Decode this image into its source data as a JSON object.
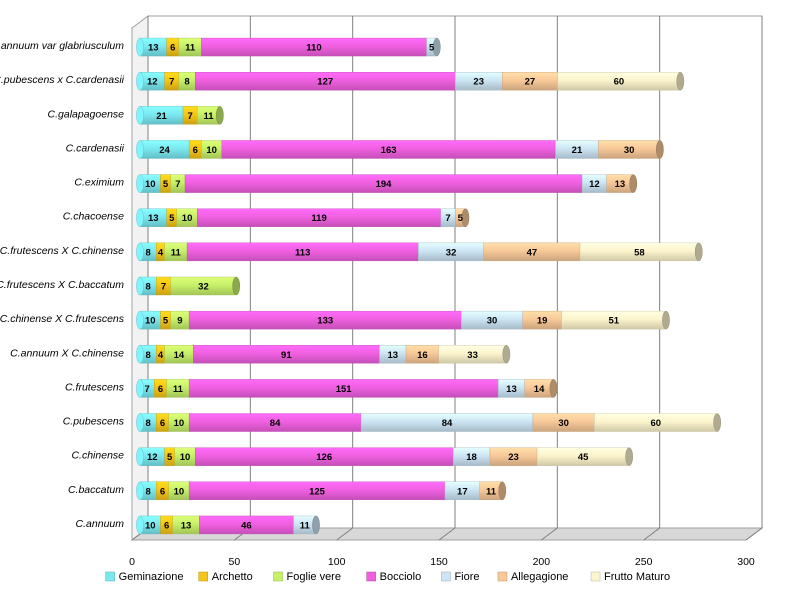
{
  "chart_data": {
    "type": "bar",
    "orientation": "horizontal",
    "stacked": true,
    "three_d": true,
    "grid": true,
    "legend_position": "bottom",
    "xlim": [
      0,
      300
    ],
    "x_ticks": [
      0,
      50,
      100,
      150,
      200,
      250,
      300
    ],
    "categories": [
      "C.annuum var glabriusculum",
      "C.pubescens x C.cardenasii",
      "C.galapagoense",
      "C.cardenasii",
      "C.eximium",
      "C.chacoense",
      "C.frutescens X C.chinense",
      "C.frutescens X C.baccatum",
      "C.chinense X C.frutescens",
      "C.annuum X C.chinense",
      "C.frutescens",
      "C.pubescens",
      "C.chinense",
      "C.baccatum",
      "C.annuum"
    ],
    "series": [
      {
        "name": "Geminazione",
        "color": "#7ae8f0",
        "values": [
          13,
          12,
          21,
          24,
          10,
          13,
          8,
          8,
          10,
          8,
          7,
          8,
          12,
          8,
          10
        ]
      },
      {
        "name": "Archetto",
        "color": "#f5c518",
        "values": [
          6,
          7,
          7,
          6,
          5,
          5,
          4,
          7,
          5,
          4,
          6,
          6,
          5,
          6,
          6
        ]
      },
      {
        "name": "Foglie vere",
        "color": "#c6f06a",
        "values": [
          11,
          8,
          11,
          10,
          7,
          10,
          11,
          32,
          9,
          14,
          11,
          10,
          10,
          10,
          13
        ]
      },
      {
        "name": "Bocciolo",
        "color": "#f060e0",
        "values": [
          110,
          127,
          0,
          163,
          194,
          119,
          113,
          0,
          133,
          91,
          151,
          84,
          126,
          125,
          46
        ]
      },
      {
        "name": "Fiore",
        "color": "#cce4f4",
        "values": [
          5,
          23,
          0,
          21,
          12,
          7,
          32,
          0,
          30,
          13,
          13,
          84,
          18,
          17,
          11
        ]
      },
      {
        "name": "Allegagione",
        "color": "#f8c898",
        "values": [
          0,
          27,
          0,
          30,
          13,
          5,
          47,
          0,
          19,
          16,
          14,
          30,
          23,
          11,
          0
        ]
      },
      {
        "name": "Frutto Maturo",
        "color": "#fcf4cc",
        "values": [
          0,
          60,
          0,
          0,
          0,
          0,
          58,
          0,
          51,
          33,
          0,
          60,
          45,
          0,
          0
        ]
      }
    ]
  }
}
